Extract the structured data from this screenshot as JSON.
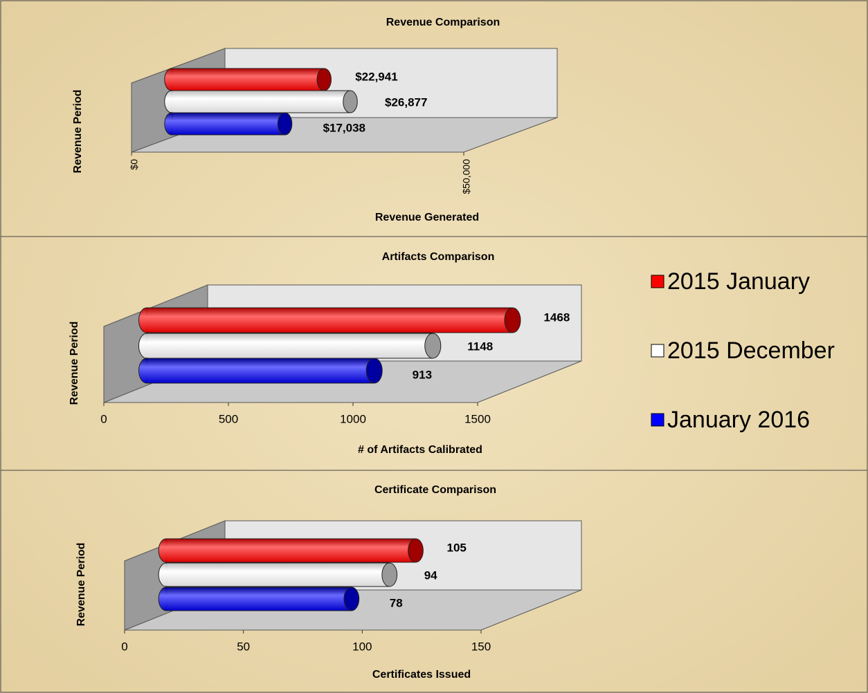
{
  "legend": [
    {
      "name": "2015 January",
      "color": "#ff0000"
    },
    {
      "name": "2015 December",
      "color": "#ffffff"
    },
    {
      "name": "January 2016",
      "color": "#0000ff"
    }
  ],
  "chart_data": [
    {
      "type": "bar",
      "orientation": "horizontal",
      "title": "Revenue Comparison",
      "xlabel": "Revenue Generated",
      "ylabel": "Revenue Period",
      "values": [
        22941,
        26877,
        17038
      ],
      "value_labels": [
        "$22,941",
        "$26,877",
        "$17,038"
      ],
      "xlim": [
        0,
        50000
      ],
      "xticks": [
        {
          "value": 0,
          "label": "$0"
        },
        {
          "value": 50000,
          "label": "$50,000"
        }
      ]
    },
    {
      "type": "bar",
      "orientation": "horizontal",
      "title": "Artifacts Comparison",
      "xlabel": "# of Artifacts Calibrated",
      "ylabel": "Revenue Period",
      "values": [
        1468,
        1148,
        913
      ],
      "xlim": [
        0,
        1500
      ],
      "xticks": [
        0,
        500,
        1000,
        1500
      ]
    },
    {
      "type": "bar",
      "orientation": "horizontal",
      "title": "Certificate Comparison",
      "xlabel": "Certificates Issued",
      "ylabel": "Revenue Period",
      "values": [
        105,
        94,
        78
      ],
      "xlim": [
        0,
        150
      ],
      "xticks": [
        0,
        50,
        100,
        150
      ]
    }
  ]
}
